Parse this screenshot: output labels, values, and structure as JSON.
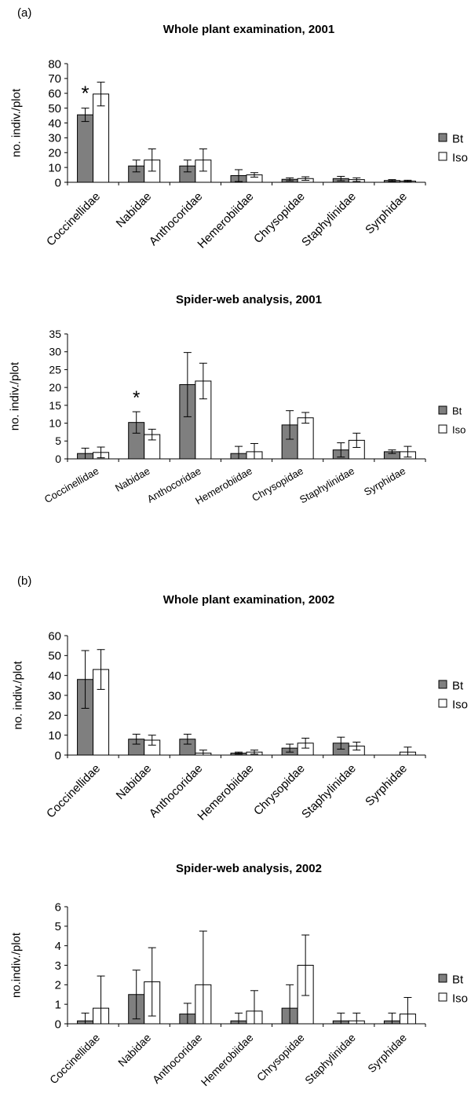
{
  "panel_labels": {
    "a": "(a)",
    "b": "(b)"
  },
  "legend": {
    "bt": "Bt",
    "iso": "Iso"
  },
  "colors": {
    "bt": "#7f7f7f",
    "iso": "#ffffff",
    "stroke": "#000000"
  },
  "chart_data": [
    {
      "type": "bar",
      "title": "Whole plant examination, 2001",
      "ylabel": "no. indiv./plot",
      "ylim": [
        0,
        80
      ],
      "yticks": [
        0,
        10,
        20,
        30,
        40,
        50,
        60,
        70,
        80
      ],
      "categories": [
        "Coccinellidae",
        "Nabidae",
        "Anthocoridae",
        "Hemerobiidae",
        "Chrysopidae",
        "Staphylinidae",
        "Syrphidae"
      ],
      "series": [
        {
          "name": "Bt",
          "values": [
            45.5,
            11,
            11,
            4.5,
            2,
            2.5,
            1.2
          ],
          "error": [
            4.5,
            4,
            4,
            4,
            1,
            1.5,
            0.6
          ]
        },
        {
          "name": "Iso",
          "values": [
            59.5,
            15,
            15,
            5,
            2.5,
            1.8,
            0.8
          ],
          "error": [
            8,
            7.5,
            7.5,
            1.5,
            1.2,
            1.2,
            0.6
          ]
        }
      ],
      "annotations": [
        {
          "category": "Coccinellidae",
          "text": "*"
        }
      ]
    },
    {
      "type": "bar",
      "title": "Spider-web analysis, 2001",
      "ylabel": "no. indiv./plot",
      "ylim": [
        0,
        35
      ],
      "yticks": [
        0,
        5,
        10,
        15,
        20,
        25,
        30,
        35
      ],
      "categories": [
        "Coccinellidae",
        "Nabidae",
        "Anthocoridae",
        "Hemerobiidae",
        "Chrysopidae",
        "Staphylinidae",
        "Syrphidae"
      ],
      "series": [
        {
          "name": "Bt",
          "values": [
            1.5,
            10.2,
            20.8,
            1.5,
            9.5,
            2.5,
            2
          ],
          "error": [
            1.5,
            3,
            9,
            2,
            4,
            2,
            0.5
          ]
        },
        {
          "name": "Iso",
          "values": [
            1.8,
            6.8,
            21.8,
            2,
            11.5,
            5.2,
            2
          ],
          "error": [
            1.5,
            1.5,
            5,
            2.3,
            1.5,
            2,
            1.5
          ]
        }
      ],
      "annotations": [
        {
          "category": "Nabidae",
          "text": "*"
        }
      ]
    },
    {
      "type": "bar",
      "title": "Whole plant examination, 2002",
      "ylabel": "no. indiv./plot",
      "ylim": [
        0,
        60
      ],
      "yticks": [
        0,
        10,
        20,
        30,
        40,
        50,
        60
      ],
      "categories": [
        "Coccinellidae",
        "Nabidae",
        "Anthocoridae",
        "Hemerobiidae",
        "Chrysopidae",
        "Staphylinidae",
        "Syrphidae"
      ],
      "series": [
        {
          "name": "Bt",
          "values": [
            38,
            8,
            8,
            1,
            3.5,
            6,
            0
          ],
          "error": [
            14.5,
            2.5,
            2.5,
            0.5,
            2,
            3,
            0
          ]
        },
        {
          "name": "Iso",
          "values": [
            43,
            7.5,
            1,
            1.5,
            6,
            4.5,
            1.5
          ],
          "error": [
            10,
            2.5,
            1.5,
            1,
            2.5,
            2,
            2.5
          ]
        }
      ],
      "annotations": []
    },
    {
      "type": "bar",
      "title": "Spider-web analysis, 2002",
      "ylabel": "no.indiv./plot",
      "ylim": [
        0,
        6
      ],
      "yticks": [
        0,
        1,
        2,
        3,
        4,
        5,
        6
      ],
      "categories": [
        "Coccinellidae",
        "Nabidae",
        "Anthocoridae",
        "Hemerobiidae",
        "Chrysopidae",
        "Staphylinidae",
        "Syrphidae"
      ],
      "series": [
        {
          "name": "Bt",
          "values": [
            0.15,
            1.5,
            0.5,
            0.15,
            0.8,
            0.15,
            0.15
          ],
          "error": [
            0.4,
            1.25,
            0.55,
            0.4,
            1.2,
            0.4,
            0.4
          ]
        },
        {
          "name": "Iso",
          "values": [
            0.8,
            2.15,
            2.0,
            0.65,
            3.0,
            0.15,
            0.5
          ],
          "error": [
            1.65,
            1.75,
            2.75,
            1.05,
            1.55,
            0.4,
            0.85
          ]
        }
      ],
      "annotations": []
    }
  ]
}
